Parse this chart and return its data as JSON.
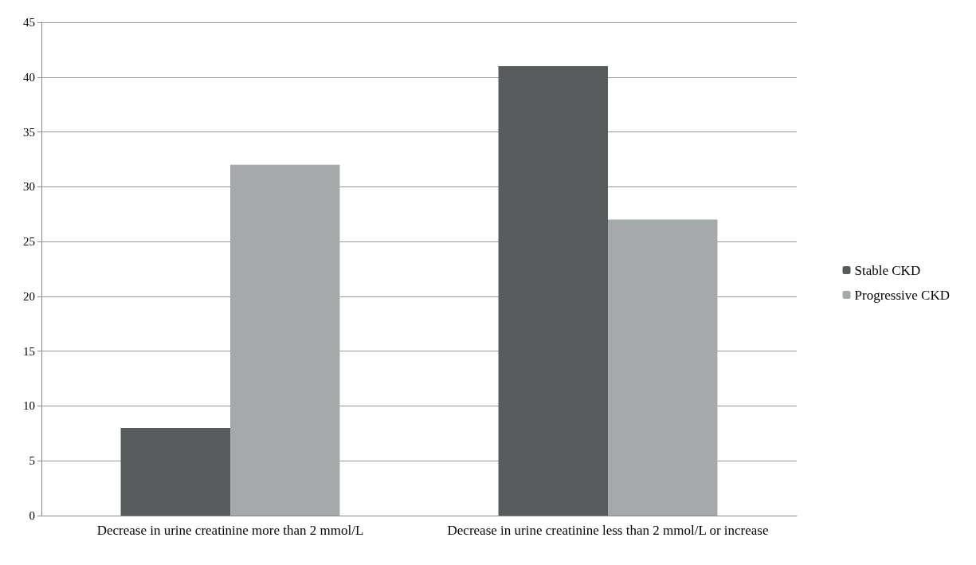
{
  "chart_data": {
    "type": "bar",
    "categories": [
      "Decrease in urine creatinine more than 2 mmol/L",
      "Decrease in urine creatinine less than 2 mmol/L or increase"
    ],
    "series": [
      {
        "name": "Stable CKD",
        "color": "#585c5d",
        "values": [
          8,
          41
        ]
      },
      {
        "name": "Progressive CKD",
        "color": "#a6a9aa",
        "values": [
          32,
          27
        ]
      }
    ],
    "ylim": [
      0,
      45
    ],
    "yticks": [
      0,
      5,
      10,
      15,
      20,
      25,
      30,
      35,
      40,
      45
    ],
    "grid": "y",
    "legend": "right"
  }
}
